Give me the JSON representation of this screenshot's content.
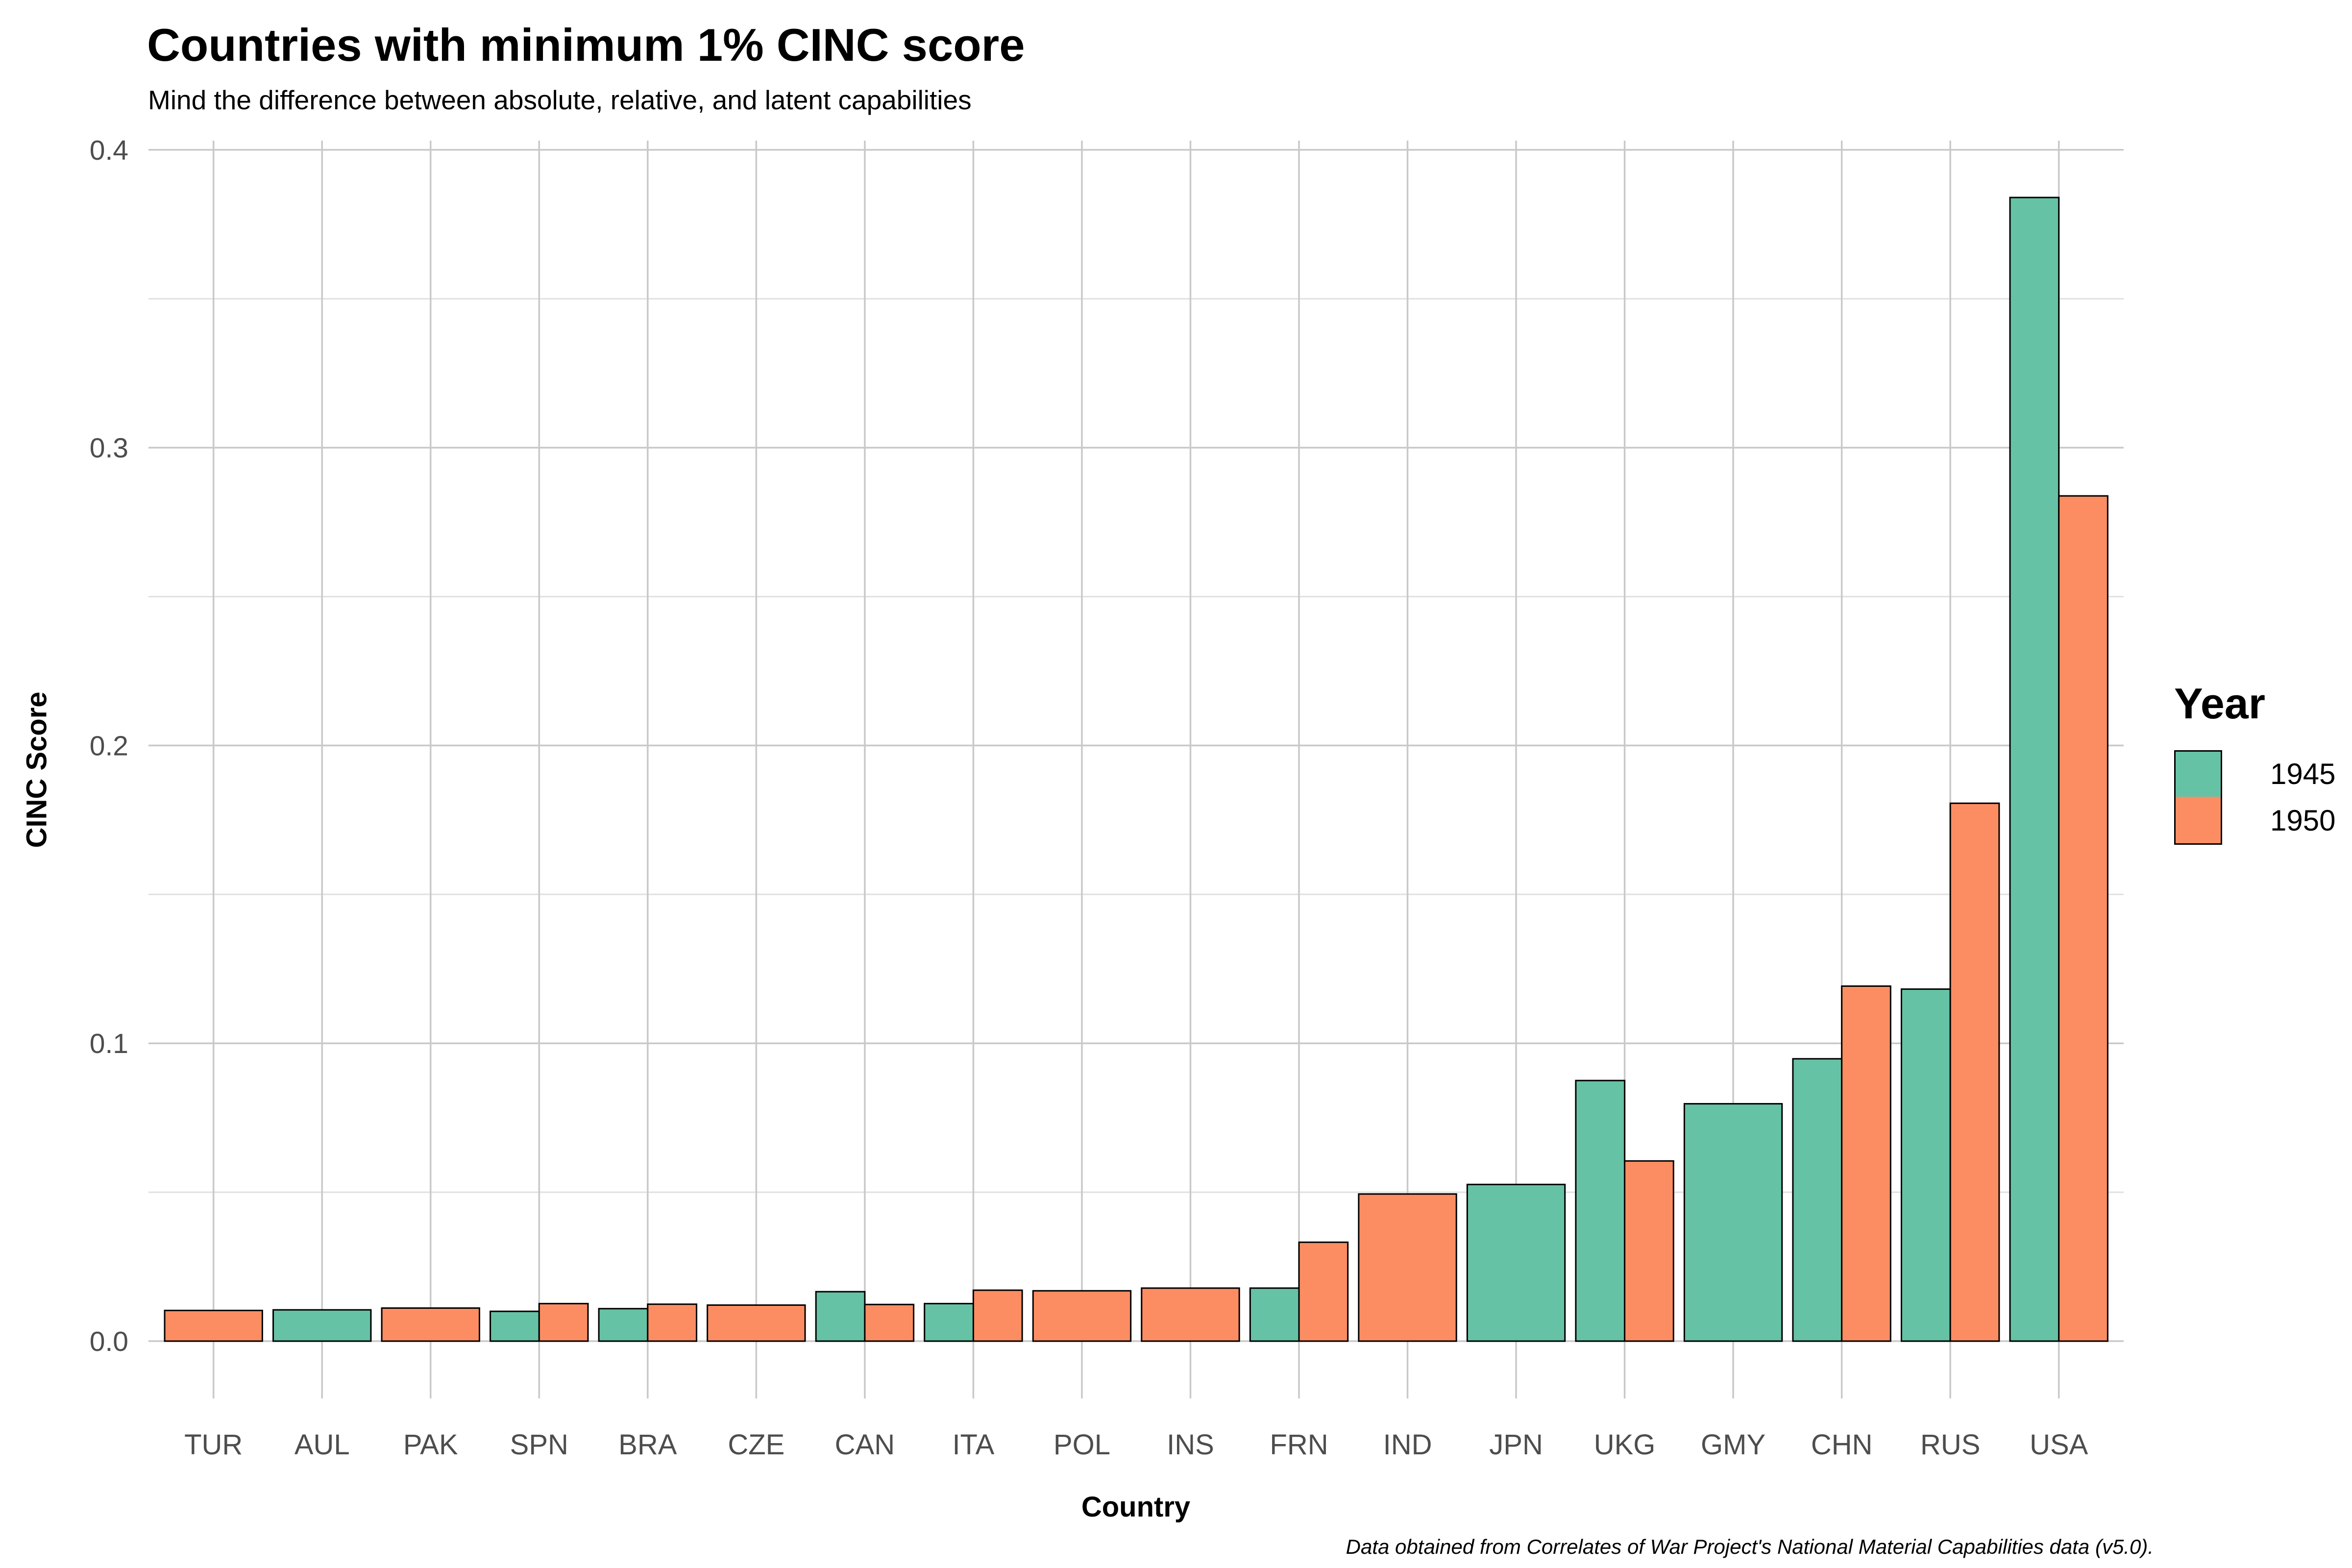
{
  "header": {
    "title": "Countries with minimum 1% CINC score",
    "subtitle": "Mind the difference between absolute, relative, and latent capabilities"
  },
  "caption": "Data obtained from Correlates of War Project's National Material Capabilities data (v5.0).",
  "chart_data": {
    "type": "bar",
    "variant": "grouped-dodged",
    "title": "Countries with minimum 1% CINC score",
    "subtitle": "Mind the difference between absolute, relative, and latent capabilities",
    "xlabel": "Country",
    "ylabel": "CINC Score",
    "caption": "Data obtained from Correlates of War Project's National Material Capabilities data (v5.0).",
    "categories": [
      "TUR",
      "AUL",
      "PAK",
      "SPN",
      "BRA",
      "CZE",
      "CAN",
      "ITA",
      "POL",
      "INS",
      "FRN",
      "IND",
      "JPN",
      "UKG",
      "GMY",
      "CHN",
      "RUS",
      "USA"
    ],
    "series": [
      {
        "name": "1945",
        "color": "#66C2A5",
        "values": [
          null,
          0.0105,
          null,
          0.01,
          0.0109,
          null,
          0.0166,
          0.0126,
          null,
          null,
          0.0178,
          null,
          0.0526,
          0.0875,
          0.0797,
          0.0948,
          0.1182,
          0.384
        ]
      },
      {
        "name": "1950",
        "color": "#FC8D62",
        "values": [
          0.0103,
          null,
          0.0111,
          0.0126,
          0.0124,
          0.0121,
          0.0123,
          0.0171,
          0.0169,
          0.0178,
          0.0332,
          0.0494,
          null,
          0.0605,
          null,
          0.1192,
          0.1806,
          0.2838
        ]
      }
    ],
    "legend": {
      "title": "Year",
      "position": "right",
      "entries": [
        {
          "label": "1945",
          "color": "#66C2A5"
        },
        {
          "label": "1950",
          "color": "#FC8D62"
        }
      ]
    },
    "y_axis": {
      "ticks": [
        0.0,
        0.1,
        0.2,
        0.3,
        0.4
      ],
      "tick_labels": [
        "0.0",
        "0.1",
        "0.2",
        "0.3",
        "0.4"
      ],
      "minor_ticks": [
        0.05,
        0.15,
        0.25,
        0.35
      ],
      "ylim": [
        0,
        0.403
      ]
    },
    "grid": {
      "horizontal_major": true,
      "horizontal_minor": true,
      "vertical_major": true,
      "major_color": "#C9C9C9",
      "minor_color": "#E0E0E0"
    },
    "style": {
      "bar_border_color": "#000000",
      "tick_label_color": "#4D4D4D",
      "background": "#FFFFFF"
    }
  }
}
